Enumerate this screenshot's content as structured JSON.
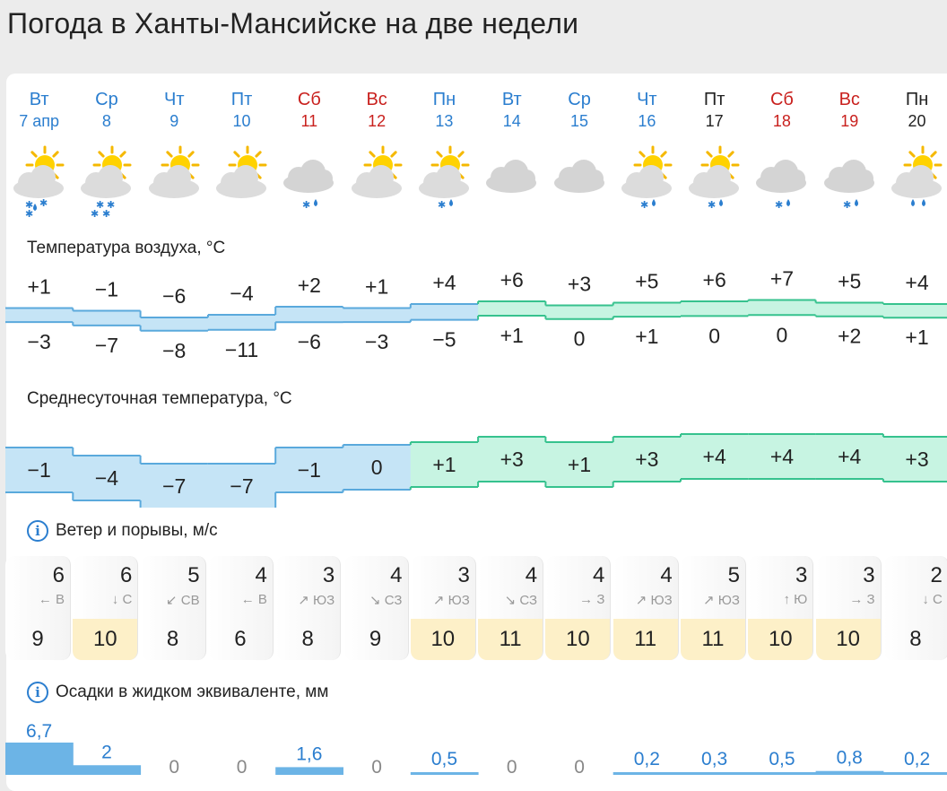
{
  "title": "Погода в Ханты-Мансийске на две недели",
  "days": [
    {
      "name": "Вт",
      "date": "7 апр",
      "type": "weekday",
      "icon": "partly-cloudy-snow-rain-icon",
      "precip_glyphs": "snow-rain"
    },
    {
      "name": "Ср",
      "date": "8",
      "type": "weekday",
      "icon": "partly-cloudy-snow-icon",
      "precip_glyphs": "snow"
    },
    {
      "name": "Чт",
      "date": "9",
      "type": "weekday",
      "icon": "partly-cloudy-icon",
      "precip_glyphs": "none"
    },
    {
      "name": "Пт",
      "date": "10",
      "type": "weekday",
      "icon": "partly-cloudy-icon",
      "precip_glyphs": "none"
    },
    {
      "name": "Сб",
      "date": "11",
      "type": "weekend",
      "icon": "cloudy-snow-rain-icon",
      "precip_glyphs": "snow-rain-small"
    },
    {
      "name": "Вс",
      "date": "12",
      "type": "weekend",
      "icon": "partly-cloudy-icon",
      "precip_glyphs": "none"
    },
    {
      "name": "Пн",
      "date": "13",
      "type": "weekday",
      "icon": "partly-cloudy-snow-rain-icon",
      "precip_glyphs": "snow-rain-small"
    },
    {
      "name": "Вт",
      "date": "14",
      "type": "weekday",
      "icon": "cloudy-icon",
      "precip_glyphs": "none"
    },
    {
      "name": "Ср",
      "date": "15",
      "type": "weekday",
      "icon": "cloudy-icon",
      "precip_glyphs": "none"
    },
    {
      "name": "Чт",
      "date": "16",
      "type": "weekday",
      "icon": "partly-cloudy-snow-rain-icon",
      "precip_glyphs": "snow-rain-small"
    },
    {
      "name": "Пт",
      "date": "17",
      "type": "plain",
      "icon": "partly-cloudy-snow-rain-icon",
      "precip_glyphs": "snow-rain-small"
    },
    {
      "name": "Сб",
      "date": "18",
      "type": "weekend",
      "icon": "cloudy-snow-rain-icon",
      "precip_glyphs": "snow-rain-small"
    },
    {
      "name": "Вс",
      "date": "19",
      "type": "weekend",
      "icon": "cloudy-snow-rain-icon",
      "precip_glyphs": "snow-rain-small"
    },
    {
      "name": "Пн",
      "date": "20",
      "type": "plain",
      "icon": "partly-cloudy-rain-icon",
      "precip_glyphs": "rain"
    }
  ],
  "sections": {
    "air_temp": "Температура воздуха, °C",
    "avg_temp": "Среднесуточная температура, °C",
    "wind": "Ветер и порывы, м/с",
    "precip": "Осадки в жидком эквиваленте, мм"
  },
  "temp_max": [
    "+1",
    "−1",
    "−6",
    "−4",
    "+2",
    "+1",
    "+4",
    "+6",
    "+3",
    "+5",
    "+6",
    "+7",
    "+5",
    "+4"
  ],
  "temp_min": [
    "−3",
    "−7",
    "−8",
    "−11",
    "−6",
    "−3",
    "−5",
    "+1",
    "0",
    "+1",
    "0",
    "0",
    "+2",
    "+1"
  ],
  "temp_max_values": [
    1,
    -1,
    -6,
    -4,
    2,
    1,
    4,
    6,
    3,
    5,
    6,
    7,
    5,
    4
  ],
  "temp_min_values": [
    -3,
    -7,
    -8,
    -11,
    -6,
    -3,
    -5,
    1,
    0,
    1,
    0,
    0,
    2,
    1
  ],
  "avg_temp": [
    "−1",
    "−4",
    "−7",
    "−7",
    "−1",
    "0",
    "+1",
    "+3",
    "+1",
    "+3",
    "+4",
    "+4",
    "+4",
    "+3"
  ],
  "avg_temp_values": [
    -1,
    -4,
    -7,
    -7,
    -1,
    0,
    1,
    3,
    1,
    3,
    4,
    4,
    4,
    3
  ],
  "wind": [
    {
      "speed": "6",
      "dir": "← В",
      "gust": "9",
      "high": false
    },
    {
      "speed": "6",
      "dir": "↓ С",
      "gust": "10",
      "high": true
    },
    {
      "speed": "5",
      "dir": "↙ СВ",
      "gust": "8",
      "high": false
    },
    {
      "speed": "4",
      "dir": "← В",
      "gust": "6",
      "high": false
    },
    {
      "speed": "3",
      "dir": "↗ ЮЗ",
      "gust": "8",
      "high": false
    },
    {
      "speed": "4",
      "dir": "↘ СЗ",
      "gust": "9",
      "high": false
    },
    {
      "speed": "3",
      "dir": "↗ ЮЗ",
      "gust": "10",
      "high": true
    },
    {
      "speed": "4",
      "dir": "↘ СЗ",
      "gust": "11",
      "high": true
    },
    {
      "speed": "4",
      "dir": "→ З",
      "gust": "10",
      "high": true
    },
    {
      "speed": "4",
      "dir": "↗ ЮЗ",
      "gust": "11",
      "high": true
    },
    {
      "speed": "5",
      "dir": "↗ ЮЗ",
      "gust": "11",
      "high": true
    },
    {
      "speed": "3",
      "dir": "↑ Ю",
      "gust": "10",
      "high": true
    },
    {
      "speed": "3",
      "dir": "→ З",
      "gust": "10",
      "high": true
    },
    {
      "speed": "2",
      "dir": "↓ С",
      "gust": "8",
      "high": false
    }
  ],
  "precip": [
    "6,7",
    "2",
    "0",
    "0",
    "1,6",
    "0",
    "0,5",
    "0",
    "0",
    "0,2",
    "0,3",
    "0,5",
    "0,8",
    "0,2"
  ],
  "precip_values": [
    6.7,
    2,
    0,
    0,
    1.6,
    0,
    0.5,
    0,
    0,
    0.2,
    0.3,
    0.5,
    0.8,
    0.2
  ],
  "colors": {
    "weekday": "#2b7ecf",
    "weekend": "#c9211e",
    "cold": "#c5e4f6",
    "cold_stroke": "#5aa9dc",
    "warm": "#c7f4e2",
    "warm_stroke": "#36c28e",
    "precip": "#6cb4e6",
    "gust_high": "#fdf0c8"
  }
}
